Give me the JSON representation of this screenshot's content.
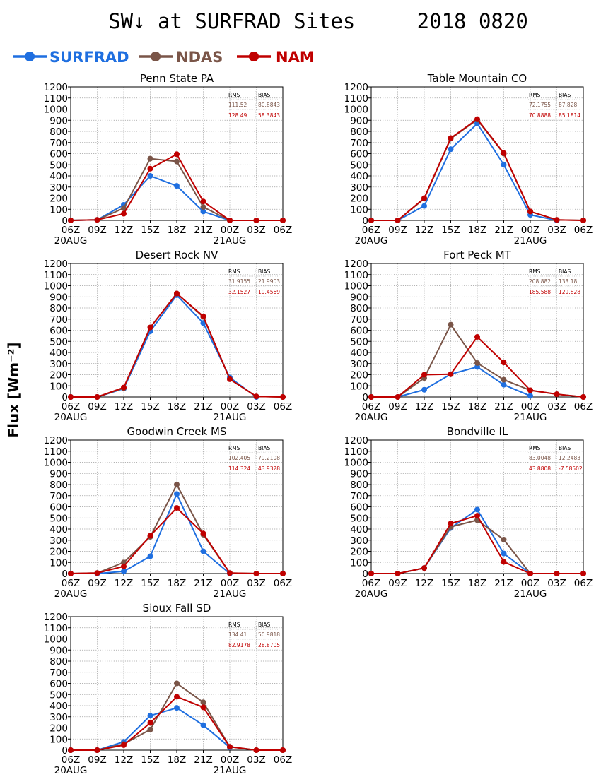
{
  "page": {
    "title": "SW↓ at SURFRAD Sites     2018 0820",
    "ylabel": "Flux [Wm⁻²]"
  },
  "legend": [
    {
      "name": "SURFRAD",
      "color": "#1f6fe0"
    },
    {
      "name": "NDAS",
      "color": "#7a5548"
    },
    {
      "name": "NAM",
      "color": "#c00000"
    }
  ],
  "chart_data": [
    {
      "type": "line",
      "title": "Penn State PA",
      "x": [
        "06Z",
        "09Z",
        "12Z",
        "15Z",
        "18Z",
        "21Z",
        "00Z",
        "03Z",
        "06Z"
      ],
      "date_labels": [
        "20AUG",
        "21AUG"
      ],
      "ylim": [
        0,
        1200
      ],
      "yticks": [
        0,
        100,
        200,
        300,
        400,
        500,
        600,
        700,
        800,
        900,
        1000,
        1100,
        1200
      ],
      "grid": true,
      "series": [
        {
          "name": "SURFRAD",
          "color": "#1f6fe0",
          "values": [
            0,
            5,
            140,
            400,
            310,
            80,
            0,
            null,
            null
          ]
        },
        {
          "name": "NDAS",
          "color": "#7a5548",
          "values": [
            0,
            5,
            110,
            555,
            530,
            120,
            0,
            0,
            0
          ]
        },
        {
          "name": "NAM",
          "color": "#c00000",
          "values": [
            0,
            5,
            60,
            465,
            595,
            170,
            0,
            0,
            0
          ]
        }
      ],
      "stats": {
        "header": [
          "RMS",
          "BIAS"
        ],
        "rows": [
          {
            "model": "NDAS",
            "rms": "111.52",
            "bias": "80.8843"
          },
          {
            "model": "NAM",
            "rms": "128.49",
            "bias": "58.3843"
          }
        ]
      }
    },
    {
      "type": "line",
      "title": "Table Mountain CO",
      "x": [
        "06Z",
        "09Z",
        "12Z",
        "15Z",
        "18Z",
        "21Z",
        "00Z",
        "03Z",
        "06Z"
      ],
      "date_labels": [
        "20AUG",
        "21AUG"
      ],
      "ylim": [
        0,
        1200
      ],
      "yticks": [
        0,
        100,
        200,
        300,
        400,
        500,
        600,
        700,
        800,
        900,
        1000,
        1100,
        1200
      ],
      "grid": true,
      "series": [
        {
          "name": "SURFRAD",
          "color": "#1f6fe0",
          "values": [
            0,
            0,
            130,
            640,
            870,
            500,
            50,
            0,
            null
          ]
        },
        {
          "name": "NDAS",
          "color": "#7a5548",
          "values": [
            0,
            0,
            195,
            735,
            905,
            600,
            80,
            5,
            0
          ]
        },
        {
          "name": "NAM",
          "color": "#c00000",
          "values": [
            0,
            0,
            200,
            740,
            910,
            605,
            80,
            5,
            0
          ]
        }
      ],
      "stats": {
        "header": [
          "RMS",
          "BIAS"
        ],
        "rows": [
          {
            "model": "NDAS",
            "rms": "72.1755",
            "bias": "87.828"
          },
          {
            "model": "NAM",
            "rms": "70.8888",
            "bias": "85.1814"
          }
        ]
      }
    },
    {
      "type": "line",
      "title": "Desert Rock NV",
      "x": [
        "06Z",
        "09Z",
        "12Z",
        "15Z",
        "18Z",
        "21Z",
        "00Z",
        "03Z",
        "06Z"
      ],
      "date_labels": [
        "20AUG",
        "21AUG"
      ],
      "ylim": [
        0,
        1200
      ],
      "yticks": [
        0,
        100,
        200,
        300,
        400,
        500,
        600,
        700,
        800,
        900,
        1000,
        1100,
        1200
      ],
      "grid": true,
      "series": [
        {
          "name": "SURFRAD",
          "color": "#1f6fe0",
          "values": [
            0,
            0,
            75,
            590,
            915,
            665,
            175,
            0,
            null
          ]
        },
        {
          "name": "NDAS",
          "color": "#7a5548",
          "values": [
            0,
            0,
            80,
            625,
            930,
            720,
            160,
            5,
            0
          ]
        },
        {
          "name": "NAM",
          "color": "#c00000",
          "values": [
            0,
            0,
            85,
            625,
            930,
            725,
            160,
            5,
            0
          ]
        }
      ],
      "stats": {
        "header": [
          "RMS",
          "BIAS"
        ],
        "rows": [
          {
            "model": "NDAS",
            "rms": "31.9155",
            "bias": "21.9903"
          },
          {
            "model": "NAM",
            "rms": "32.1527",
            "bias": "19.4569"
          }
        ]
      }
    },
    {
      "type": "line",
      "title": "Fort Peck MT",
      "x": [
        "06Z",
        "09Z",
        "12Z",
        "15Z",
        "18Z",
        "21Z",
        "00Z",
        "03Z",
        "06Z"
      ],
      "date_labels": [
        "20AUG",
        "21AUG"
      ],
      "ylim": [
        0,
        1200
      ],
      "yticks": [
        0,
        100,
        200,
        300,
        400,
        500,
        600,
        700,
        800,
        900,
        1000,
        1100,
        1200
      ],
      "grid": true,
      "series": [
        {
          "name": "SURFRAD",
          "color": "#1f6fe0",
          "values": [
            0,
            0,
            65,
            205,
            270,
            110,
            10,
            null,
            null
          ]
        },
        {
          "name": "NDAS",
          "color": "#7a5548",
          "values": [
            0,
            0,
            170,
            650,
            305,
            155,
            60,
            25,
            0
          ]
        },
        {
          "name": "NAM",
          "color": "#c00000",
          "values": [
            0,
            0,
            200,
            205,
            540,
            310,
            60,
            25,
            0
          ]
        }
      ],
      "stats": {
        "header": [
          "RMS",
          "BIAS"
        ],
        "rows": [
          {
            "model": "NDAS",
            "rms": "208.882",
            "bias": "133.18"
          },
          {
            "model": "NAM",
            "rms": "185.588",
            "bias": "129.828"
          }
        ]
      }
    },
    {
      "type": "line",
      "title": "Goodwin Creek MS",
      "x": [
        "06Z",
        "09Z",
        "12Z",
        "15Z",
        "18Z",
        "21Z",
        "00Z",
        "03Z",
        "06Z"
      ],
      "date_labels": [
        "20AUG",
        "21AUG"
      ],
      "ylim": [
        0,
        1200
      ],
      "yticks": [
        0,
        100,
        200,
        300,
        400,
        500,
        600,
        700,
        800,
        900,
        1000,
        1100,
        1200
      ],
      "grid": true,
      "series": [
        {
          "name": "SURFRAD",
          "color": "#1f6fe0",
          "values": [
            0,
            0,
            20,
            155,
            715,
            200,
            0,
            null,
            null
          ]
        },
        {
          "name": "NDAS",
          "color": "#7a5548",
          "values": [
            0,
            5,
            100,
            330,
            800,
            350,
            5,
            0,
            0
          ]
        },
        {
          "name": "NAM",
          "color": "#c00000",
          "values": [
            0,
            5,
            65,
            340,
            590,
            360,
            5,
            0,
            0
          ]
        }
      ],
      "stats": {
        "header": [
          "RMS",
          "BIAS"
        ],
        "rows": [
          {
            "model": "NDAS",
            "rms": "102.405",
            "bias": "79.2108"
          },
          {
            "model": "NAM",
            "rms": "114.324",
            "bias": "43.9328"
          }
        ]
      }
    },
    {
      "type": "line",
      "title": "Bondville IL",
      "x": [
        "06Z",
        "09Z",
        "12Z",
        "15Z",
        "18Z",
        "21Z",
        "00Z",
        "03Z",
        "06Z"
      ],
      "date_labels": [
        "20AUG",
        "21AUG"
      ],
      "ylim": [
        0,
        1200
      ],
      "yticks": [
        0,
        100,
        200,
        300,
        400,
        500,
        600,
        700,
        800,
        900,
        1000,
        1100,
        1200
      ],
      "grid": true,
      "series": [
        {
          "name": "SURFRAD",
          "color": "#1f6fe0",
          "values": [
            0,
            0,
            50,
            410,
            575,
            180,
            0,
            null,
            null
          ]
        },
        {
          "name": "NDAS",
          "color": "#7a5548",
          "values": [
            0,
            0,
            50,
            420,
            480,
            305,
            0,
            0,
            0
          ]
        },
        {
          "name": "NAM",
          "color": "#c00000",
          "values": [
            0,
            0,
            50,
            450,
            520,
            105,
            0,
            0,
            0
          ]
        }
      ],
      "stats": {
        "header": [
          "RMS",
          "BIAS"
        ],
        "rows": [
          {
            "model": "NDAS",
            "rms": "83.0048",
            "bias": "12.2483"
          },
          {
            "model": "NAM",
            "rms": "43.8808",
            "bias": "-7.58502"
          }
        ]
      }
    },
    {
      "type": "line",
      "title": "Sioux Fall SD",
      "x": [
        "06Z",
        "09Z",
        "12Z",
        "15Z",
        "18Z",
        "21Z",
        "00Z",
        "03Z",
        "06Z"
      ],
      "date_labels": [
        "20AUG",
        "21AUG"
      ],
      "ylim": [
        0,
        1200
      ],
      "yticks": [
        0,
        100,
        200,
        300,
        400,
        500,
        600,
        700,
        800,
        900,
        1000,
        1100,
        1200
      ],
      "grid": true,
      "series": [
        {
          "name": "SURFRAD",
          "color": "#1f6fe0",
          "values": [
            0,
            0,
            75,
            310,
            380,
            225,
            25,
            null,
            null
          ]
        },
        {
          "name": "NDAS",
          "color": "#7a5548",
          "values": [
            0,
            0,
            55,
            185,
            600,
            430,
            30,
            0,
            0
          ]
        },
        {
          "name": "NAM",
          "color": "#c00000",
          "values": [
            0,
            0,
            45,
            245,
            480,
            385,
            30,
            0,
            0
          ]
        }
      ],
      "stats": {
        "header": [
          "RMS",
          "BIAS"
        ],
        "rows": [
          {
            "model": "NDAS",
            "rms": "134.41",
            "bias": "50.9818"
          },
          {
            "model": "NAM",
            "rms": "82.9178",
            "bias": "28.8705"
          }
        ]
      }
    }
  ]
}
